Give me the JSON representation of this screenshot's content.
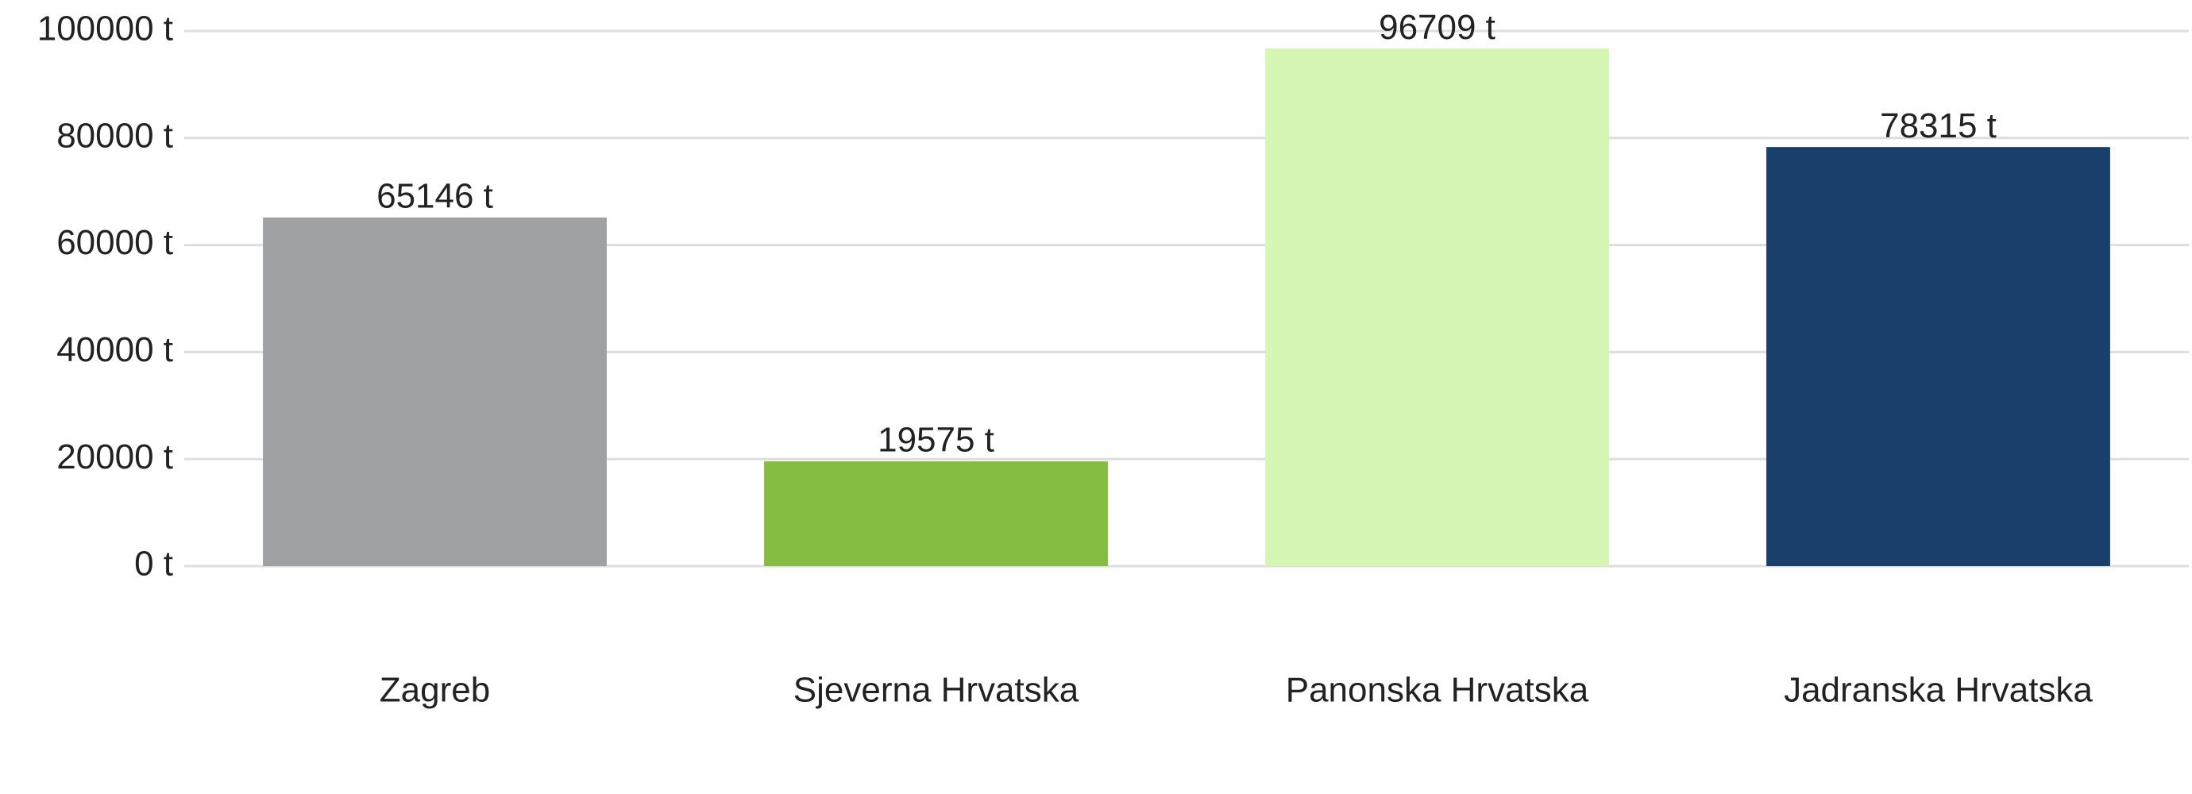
{
  "chart_data": {
    "type": "bar",
    "categories": [
      "Zagreb",
      "Sjeverna Hrvatska",
      "Panonska Hrvatska",
      "Jadranska Hrvatska"
    ],
    "values": [
      65146,
      19575,
      96709,
      78315
    ],
    "value_labels": [
      "65146 t",
      "19575 t",
      "96709 t",
      "78315 t"
    ],
    "colors": [
      "#a0a1a3",
      "#84bd41",
      "#d5f7b3",
      "#1a3f6b"
    ],
    "ylim": [
      0,
      100000
    ],
    "yticks": [
      {
        "value": 0,
        "label": "0 t"
      },
      {
        "value": 20000,
        "label": "20000 t"
      },
      {
        "value": 40000,
        "label": "40000 t"
      },
      {
        "value": 60000,
        "label": "60000 t"
      },
      {
        "value": 80000,
        "label": "80000 t"
      },
      {
        "value": 100000,
        "label": "100000 t"
      }
    ],
    "grid": true
  }
}
